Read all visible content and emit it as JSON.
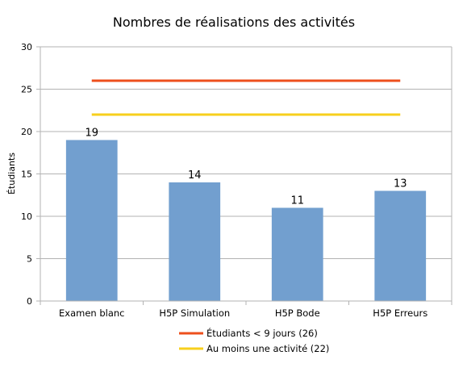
{
  "chart_data": {
    "type": "bar",
    "title": "Nombres de réalisations des activités",
    "xlabel": "",
    "ylabel": "Étudiants",
    "ylim": [
      0,
      30
    ],
    "yticks": [
      0,
      5,
      10,
      15,
      20,
      25,
      30
    ],
    "grid": "horizontal",
    "legend_position": "bottom",
    "categories": [
      "Examen blanc",
      "H5P Simulation",
      "H5P Bode",
      "H5P Erreurs"
    ],
    "series": [
      {
        "values": [
          19,
          14,
          11,
          13
        ],
        "color": "#729fcf",
        "data_labels": [
          "19",
          "14",
          "11",
          "13"
        ]
      }
    ],
    "reference_lines": [
      {
        "name": "Étudiants < 9 jours (26)",
        "value": 26,
        "color": "#ee4f1c"
      },
      {
        "name": "Au moins une activité (22)",
        "value": 22,
        "color": "#f7cf1d"
      }
    ]
  }
}
